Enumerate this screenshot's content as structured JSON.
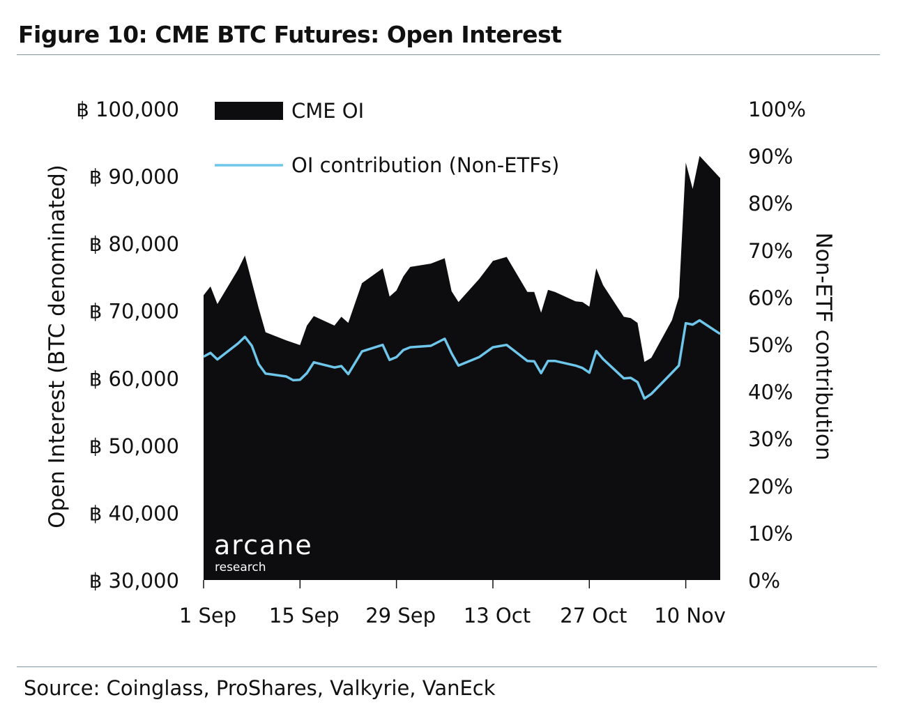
{
  "header": {
    "title": "Figure 10: CME BTC Futures: Open Interest"
  },
  "footer": {
    "source": "Source: Coinglass, ProShares, Valkyrie, VanEck"
  },
  "watermark": {
    "brand": "arcane",
    "sub": "research"
  },
  "chart_data": {
    "type": "area",
    "title": "Figure 10: CME BTC Futures: Open Interest",
    "ylabel": "Open Interest (BTC denominated)",
    "y2label": "Non-ETF contribution",
    "ylim": [
      30000,
      100000
    ],
    "y2lim": [
      0,
      100
    ],
    "yticks": [
      "฿ 30,000",
      "฿ 40,000",
      "฿ 50,000",
      "฿ 60,000",
      "฿ 70,000",
      "฿ 80,000",
      "฿ 90,000",
      "฿ 100,000"
    ],
    "y2ticks": [
      "0%",
      "10%",
      "20%",
      "30%",
      "40%",
      "50%",
      "60%",
      "70%",
      "80%",
      "90%",
      "100%"
    ],
    "xticks": [
      "1 Sep",
      "15 Sep",
      "29 Sep",
      "13 Oct",
      "27 Oct",
      "10 Nov"
    ],
    "legend": [
      "CME OI",
      "OI contribution (Non-ETFs)"
    ],
    "legend_position": "top-left",
    "colors": {
      "area": "#0d0d0f",
      "line": "#6ec6ea"
    },
    "series": [
      {
        "name": "CME OI",
        "axis": "left",
        "points": [
          [
            "2021-09-01",
            72300
          ],
          [
            "2021-09-02",
            73600
          ],
          [
            "2021-09-03",
            71000
          ],
          [
            "2021-09-06",
            76100
          ],
          [
            "2021-09-07",
            78200
          ],
          [
            "2021-09-09",
            70400
          ],
          [
            "2021-09-10",
            66800
          ],
          [
            "2021-09-13",
            65600
          ],
          [
            "2021-09-15",
            64900
          ],
          [
            "2021-09-16",
            67800
          ],
          [
            "2021-09-17",
            69200
          ],
          [
            "2021-09-20",
            67800
          ],
          [
            "2021-09-21",
            69100
          ],
          [
            "2021-09-22",
            68200
          ],
          [
            "2021-09-24",
            74100
          ],
          [
            "2021-09-27",
            76300
          ],
          [
            "2021-09-28",
            72100
          ],
          [
            "2021-09-29",
            73000
          ],
          [
            "2021-09-30",
            75100
          ],
          [
            "2021-10-01",
            76500
          ],
          [
            "2021-10-04",
            77000
          ],
          [
            "2021-10-06",
            77800
          ],
          [
            "2021-10-07",
            72900
          ],
          [
            "2021-10-08",
            71300
          ],
          [
            "2021-10-11",
            74700
          ],
          [
            "2021-10-13",
            77400
          ],
          [
            "2021-10-15",
            78000
          ],
          [
            "2021-10-18",
            72800
          ],
          [
            "2021-10-19",
            72800
          ],
          [
            "2021-10-20",
            69700
          ],
          [
            "2021-10-21",
            73100
          ],
          [
            "2021-10-22",
            72800
          ],
          [
            "2021-10-25",
            71400
          ],
          [
            "2021-10-26",
            71300
          ],
          [
            "2021-10-27",
            70600
          ],
          [
            "2021-10-28",
            76300
          ],
          [
            "2021-10-29",
            73800
          ],
          [
            "2021-11-01",
            69100
          ],
          [
            "2021-11-02",
            68900
          ],
          [
            "2021-11-03",
            68200
          ],
          [
            "2021-11-04",
            62400
          ],
          [
            "2021-11-05",
            63000
          ],
          [
            "2021-11-08",
            68600
          ],
          [
            "2021-11-09",
            72000
          ],
          [
            "2021-11-10",
            92000
          ],
          [
            "2021-11-11",
            88100
          ],
          [
            "2021-11-12",
            93000
          ],
          [
            "2021-11-15",
            89700
          ]
        ]
      },
      {
        "name": "OI contribution (Non-ETFs)",
        "axis": "right",
        "points": [
          [
            "2021-09-01",
            47.4
          ],
          [
            "2021-09-02",
            48.2
          ],
          [
            "2021-09-03",
            46.8
          ],
          [
            "2021-09-06",
            50.2
          ],
          [
            "2021-09-07",
            51.6
          ],
          [
            "2021-09-08",
            49.7
          ],
          [
            "2021-09-09",
            45.8
          ],
          [
            "2021-09-10",
            43.8
          ],
          [
            "2021-09-13",
            43.2
          ],
          [
            "2021-09-14",
            42.4
          ],
          [
            "2021-09-15",
            42.5
          ],
          [
            "2021-09-16",
            43.9
          ],
          [
            "2021-09-17",
            46.2
          ],
          [
            "2021-09-20",
            45.1
          ],
          [
            "2021-09-21",
            45.4
          ],
          [
            "2021-09-22",
            43.7
          ],
          [
            "2021-09-24",
            48.5
          ],
          [
            "2021-09-27",
            49.9
          ],
          [
            "2021-09-28",
            46.7
          ],
          [
            "2021-09-29",
            47.3
          ],
          [
            "2021-09-30",
            48.8
          ],
          [
            "2021-10-01",
            49.4
          ],
          [
            "2021-10-04",
            49.7
          ],
          [
            "2021-10-06",
            51.2
          ],
          [
            "2021-10-07",
            48.1
          ],
          [
            "2021-10-08",
            45.5
          ],
          [
            "2021-10-11",
            47.3
          ],
          [
            "2021-10-13",
            49.4
          ],
          [
            "2021-10-15",
            49.9
          ],
          [
            "2021-10-18",
            46.5
          ],
          [
            "2021-10-19",
            46.4
          ],
          [
            "2021-10-20",
            43.9
          ],
          [
            "2021-10-21",
            46.5
          ],
          [
            "2021-10-22",
            46.5
          ],
          [
            "2021-10-25",
            45.5
          ],
          [
            "2021-10-26",
            45.0
          ],
          [
            "2021-10-27",
            44.0
          ],
          [
            "2021-10-28",
            48.6
          ],
          [
            "2021-10-29",
            46.9
          ],
          [
            "2021-11-01",
            42.8
          ],
          [
            "2021-11-02",
            42.9
          ],
          [
            "2021-11-03",
            42.0
          ],
          [
            "2021-11-04",
            38.5
          ],
          [
            "2021-11-05",
            39.5
          ],
          [
            "2021-11-08",
            44.0
          ],
          [
            "2021-11-09",
            45.5
          ],
          [
            "2021-11-10",
            54.5
          ],
          [
            "2021-11-11",
            54.2
          ],
          [
            "2021-11-12",
            55.1
          ],
          [
            "2021-11-15",
            52.2
          ]
        ]
      }
    ]
  }
}
